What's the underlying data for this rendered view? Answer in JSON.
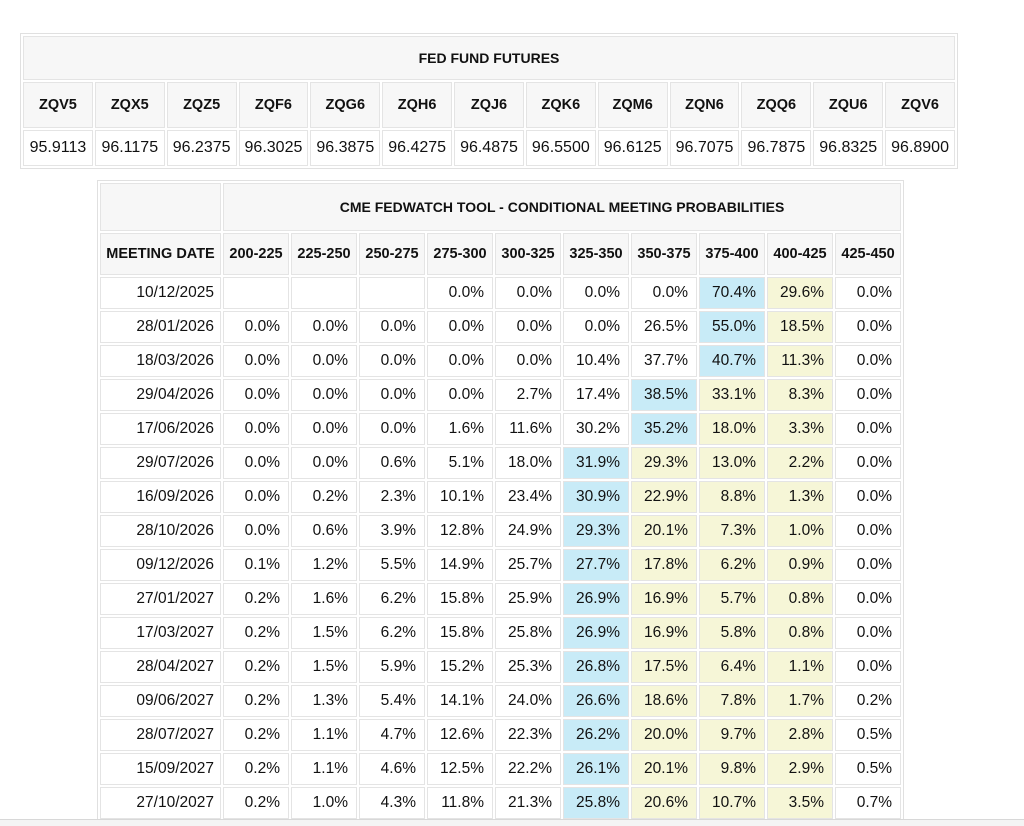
{
  "colors": {
    "highlight_blue": "#c8ebf7",
    "highlight_yellow": "#f6f6d7",
    "header_bg": "#f7f7f7",
    "border": "#e4e4e4"
  },
  "fed_fund_futures": {
    "title": "FED FUND FUTURES",
    "contracts": [
      "ZQV5",
      "ZQX5",
      "ZQZ5",
      "ZQF6",
      "ZQG6",
      "ZQH6",
      "ZQJ6",
      "ZQK6",
      "ZQM6",
      "ZQN6",
      "ZQQ6",
      "ZQU6",
      "ZQV6"
    ],
    "prices": [
      "95.9113",
      "96.1175",
      "96.2375",
      "96.3025",
      "96.3875",
      "96.4275",
      "96.4875",
      "96.5500",
      "96.6125",
      "96.7075",
      "96.7875",
      "96.8325",
      "96.8900"
    ]
  },
  "fedwatch": {
    "title": "CME FEDWATCH TOOL - CONDITIONAL MEETING PROBABILITIES",
    "date_header": "MEETING DATE",
    "rate_ranges": [
      "200-225",
      "225-250",
      "250-275",
      "275-300",
      "300-325",
      "325-350",
      "350-375",
      "375-400",
      "400-425",
      "425-450"
    ],
    "rows": [
      {
        "date": "10/12/2025",
        "values": [
          "",
          "",
          "",
          "0.0%",
          "0.0%",
          "0.0%",
          "0.0%",
          "70.4%",
          "29.6%",
          "0.0%"
        ],
        "hl": [
          "",
          "",
          "",
          "",
          "",
          "",
          "",
          "b",
          "y",
          ""
        ]
      },
      {
        "date": "28/01/2026",
        "values": [
          "0.0%",
          "0.0%",
          "0.0%",
          "0.0%",
          "0.0%",
          "0.0%",
          "26.5%",
          "55.0%",
          "18.5%",
          "0.0%"
        ],
        "hl": [
          "",
          "",
          "",
          "",
          "",
          "",
          "",
          "b",
          "y",
          ""
        ]
      },
      {
        "date": "18/03/2026",
        "values": [
          "0.0%",
          "0.0%",
          "0.0%",
          "0.0%",
          "0.0%",
          "10.4%",
          "37.7%",
          "40.7%",
          "11.3%",
          "0.0%"
        ],
        "hl": [
          "",
          "",
          "",
          "",
          "",
          "",
          "",
          "b",
          "y",
          ""
        ]
      },
      {
        "date": "29/04/2026",
        "values": [
          "0.0%",
          "0.0%",
          "0.0%",
          "0.0%",
          "2.7%",
          "17.4%",
          "38.5%",
          "33.1%",
          "8.3%",
          "0.0%"
        ],
        "hl": [
          "",
          "",
          "",
          "",
          "",
          "",
          "b",
          "y",
          "y",
          ""
        ]
      },
      {
        "date": "17/06/2026",
        "values": [
          "0.0%",
          "0.0%",
          "0.0%",
          "1.6%",
          "11.6%",
          "30.2%",
          "35.2%",
          "18.0%",
          "3.3%",
          "0.0%"
        ],
        "hl": [
          "",
          "",
          "",
          "",
          "",
          "",
          "b",
          "y",
          "y",
          ""
        ]
      },
      {
        "date": "29/07/2026",
        "values": [
          "0.0%",
          "0.0%",
          "0.6%",
          "5.1%",
          "18.0%",
          "31.9%",
          "29.3%",
          "13.0%",
          "2.2%",
          "0.0%"
        ],
        "hl": [
          "",
          "",
          "",
          "",
          "",
          "b",
          "y",
          "y",
          "y",
          ""
        ]
      },
      {
        "date": "16/09/2026",
        "values": [
          "0.0%",
          "0.2%",
          "2.3%",
          "10.1%",
          "23.4%",
          "30.9%",
          "22.9%",
          "8.8%",
          "1.3%",
          "0.0%"
        ],
        "hl": [
          "",
          "",
          "",
          "",
          "",
          "b",
          "y",
          "y",
          "y",
          ""
        ]
      },
      {
        "date": "28/10/2026",
        "values": [
          "0.0%",
          "0.6%",
          "3.9%",
          "12.8%",
          "24.9%",
          "29.3%",
          "20.1%",
          "7.3%",
          "1.0%",
          "0.0%"
        ],
        "hl": [
          "",
          "",
          "",
          "",
          "",
          "b",
          "y",
          "y",
          "y",
          ""
        ]
      },
      {
        "date": "09/12/2026",
        "values": [
          "0.1%",
          "1.2%",
          "5.5%",
          "14.9%",
          "25.7%",
          "27.7%",
          "17.8%",
          "6.2%",
          "0.9%",
          "0.0%"
        ],
        "hl": [
          "",
          "",
          "",
          "",
          "",
          "b",
          "y",
          "y",
          "y",
          ""
        ]
      },
      {
        "date": "27/01/2027",
        "values": [
          "0.2%",
          "1.6%",
          "6.2%",
          "15.8%",
          "25.9%",
          "26.9%",
          "16.9%",
          "5.7%",
          "0.8%",
          "0.0%"
        ],
        "hl": [
          "",
          "",
          "",
          "",
          "",
          "b",
          "y",
          "y",
          "y",
          ""
        ]
      },
      {
        "date": "17/03/2027",
        "values": [
          "0.2%",
          "1.5%",
          "6.2%",
          "15.8%",
          "25.8%",
          "26.9%",
          "16.9%",
          "5.8%",
          "0.8%",
          "0.0%"
        ],
        "hl": [
          "",
          "",
          "",
          "",
          "",
          "b",
          "y",
          "y",
          "y",
          ""
        ]
      },
      {
        "date": "28/04/2027",
        "values": [
          "0.2%",
          "1.5%",
          "5.9%",
          "15.2%",
          "25.3%",
          "26.8%",
          "17.5%",
          "6.4%",
          "1.1%",
          "0.0%"
        ],
        "hl": [
          "",
          "",
          "",
          "",
          "",
          "b",
          "y",
          "y",
          "y",
          ""
        ]
      },
      {
        "date": "09/06/2027",
        "values": [
          "0.2%",
          "1.3%",
          "5.4%",
          "14.1%",
          "24.0%",
          "26.6%",
          "18.6%",
          "7.8%",
          "1.7%",
          "0.2%"
        ],
        "hl": [
          "",
          "",
          "",
          "",
          "",
          "b",
          "y",
          "y",
          "y",
          ""
        ]
      },
      {
        "date": "28/07/2027",
        "values": [
          "0.2%",
          "1.1%",
          "4.7%",
          "12.6%",
          "22.3%",
          "26.2%",
          "20.0%",
          "9.7%",
          "2.8%",
          "0.5%"
        ],
        "hl": [
          "",
          "",
          "",
          "",
          "",
          "b",
          "y",
          "y",
          "y",
          ""
        ]
      },
      {
        "date": "15/09/2027",
        "values": [
          "0.2%",
          "1.1%",
          "4.6%",
          "12.5%",
          "22.2%",
          "26.1%",
          "20.1%",
          "9.8%",
          "2.9%",
          "0.5%"
        ],
        "hl": [
          "",
          "",
          "",
          "",
          "",
          "b",
          "y",
          "y",
          "y",
          ""
        ]
      },
      {
        "date": "27/10/2027",
        "values": [
          "0.2%",
          "1.0%",
          "4.3%",
          "11.8%",
          "21.3%",
          "25.8%",
          "20.6%",
          "10.7%",
          "3.5%",
          "0.7%"
        ],
        "hl": [
          "",
          "",
          "",
          "",
          "",
          "b",
          "y",
          "y",
          "y",
          ""
        ]
      }
    ]
  }
}
